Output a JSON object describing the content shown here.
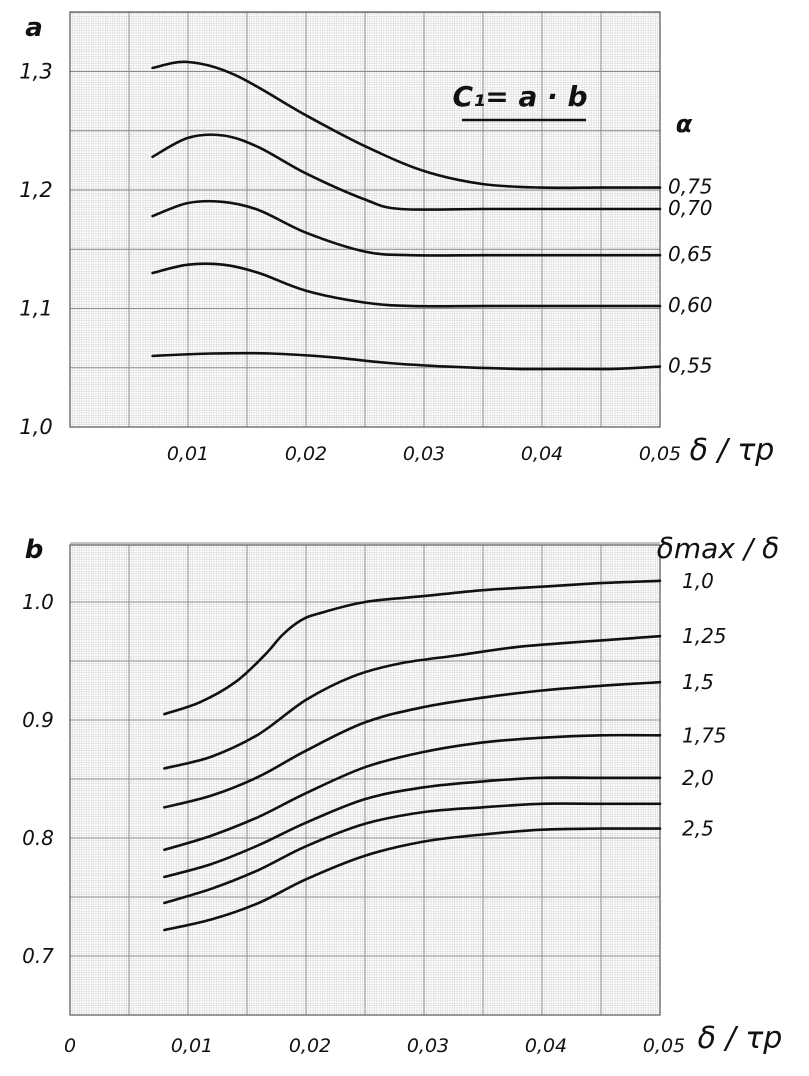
{
  "chart_data": [
    {
      "type": "line",
      "panel_label": "a",
      "formula": "C₁= a · b",
      "legend_title": "α",
      "xlabel": "δ / τp",
      "ylabel": "",
      "xlim": [
        0,
        0.05
      ],
      "ylim": [
        1.0,
        1.35
      ],
      "x_ticks": [
        "0,01",
        "0,02",
        "0,03",
        "0,04",
        "0,05"
      ],
      "y_ticks": [
        "1,0",
        "1,1",
        "1,2",
        "1,3"
      ],
      "grid": true,
      "legend_position": "right",
      "series": [
        {
          "name": "0,75",
          "x": [
            0.007,
            0.01,
            0.014,
            0.02,
            0.025,
            0.03,
            0.035,
            0.04,
            0.045,
            0.05
          ],
          "y": [
            1.303,
            1.308,
            1.297,
            1.263,
            1.237,
            1.216,
            1.205,
            1.202,
            1.202,
            1.202
          ]
        },
        {
          "name": "0,70",
          "x": [
            0.007,
            0.01,
            0.013,
            0.016,
            0.02,
            0.025,
            0.028,
            0.035,
            0.04,
            0.045,
            0.05
          ],
          "y": [
            1.228,
            1.244,
            1.246,
            1.236,
            1.214,
            1.192,
            1.184,
            1.184,
            1.184,
            1.184,
            1.184
          ]
        },
        {
          "name": "0,65",
          "x": [
            0.007,
            0.01,
            0.013,
            0.016,
            0.02,
            0.025,
            0.029,
            0.035,
            0.04,
            0.045,
            0.05
          ],
          "y": [
            1.178,
            1.189,
            1.19,
            1.183,
            1.164,
            1.148,
            1.145,
            1.145,
            1.145,
            1.145,
            1.145
          ]
        },
        {
          "name": "0,60",
          "x": [
            0.007,
            0.01,
            0.013,
            0.016,
            0.02,
            0.025,
            0.029,
            0.035,
            0.04,
            0.045,
            0.05
          ],
          "y": [
            1.13,
            1.137,
            1.137,
            1.13,
            1.115,
            1.105,
            1.102,
            1.102,
            1.102,
            1.102,
            1.102
          ]
        },
        {
          "name": "0,55",
          "x": [
            0.007,
            0.012,
            0.017,
            0.022,
            0.027,
            0.032,
            0.038,
            0.042,
            0.046,
            0.05
          ],
          "y": [
            1.06,
            1.062,
            1.062,
            1.059,
            1.054,
            1.051,
            1.049,
            1.049,
            1.049,
            1.051
          ]
        }
      ]
    },
    {
      "type": "line",
      "panel_label": "b",
      "legend_title": "δmax / δ",
      "xlabel": "δ / τp",
      "ylabel": "",
      "xlim": [
        0,
        0.05
      ],
      "ylim": [
        0.65,
        1.05
      ],
      "x_ticks": [
        "0",
        "0,01",
        "0,02",
        "0,03",
        "0,04",
        "0,05"
      ],
      "y_ticks": [
        "0.7",
        "0.8",
        "0.9",
        "1.0"
      ],
      "grid": true,
      "legend_position": "right",
      "series": [
        {
          "name": "1,0",
          "x": [
            0.008,
            0.011,
            0.014,
            0.0165,
            0.018,
            0.0195,
            0.021,
            0.025,
            0.03,
            0.035,
            0.04,
            0.045,
            0.05
          ],
          "y": [
            0.905,
            0.915,
            0.932,
            0.955,
            0.972,
            0.984,
            0.99,
            1.0,
            1.005,
            1.01,
            1.013,
            1.016,
            1.018
          ]
        },
        {
          "name": "1,25",
          "x": [
            0.008,
            0.012,
            0.016,
            0.02,
            0.024,
            0.028,
            0.033,
            0.038,
            0.043,
            0.05
          ],
          "y": [
            0.859,
            0.869,
            0.888,
            0.917,
            0.937,
            0.948,
            0.955,
            0.962,
            0.966,
            0.971
          ]
        },
        {
          "name": "1,5",
          "x": [
            0.008,
            0.012,
            0.016,
            0.02,
            0.025,
            0.03,
            0.035,
            0.04,
            0.045,
            0.05
          ],
          "y": [
            0.826,
            0.836,
            0.852,
            0.874,
            0.898,
            0.911,
            0.919,
            0.925,
            0.929,
            0.932
          ]
        },
        {
          "name": "1,75",
          "x": [
            0.008,
            0.012,
            0.016,
            0.02,
            0.025,
            0.03,
            0.035,
            0.04,
            0.045,
            0.05
          ],
          "y": [
            0.79,
            0.802,
            0.818,
            0.838,
            0.86,
            0.873,
            0.881,
            0.885,
            0.887,
            0.887
          ]
        },
        {
          "name": "2,0",
          "x": [
            0.008,
            0.012,
            0.016,
            0.02,
            0.025,
            0.03,
            0.035,
            0.04,
            0.045,
            0.05
          ],
          "y": [
            0.767,
            0.778,
            0.794,
            0.813,
            0.833,
            0.843,
            0.848,
            0.851,
            0.851,
            0.851
          ]
        },
        {
          "name": "",
          "x": [
            0.008,
            0.012,
            0.016,
            0.02,
            0.025,
            0.03,
            0.035,
            0.04,
            0.045,
            0.05
          ],
          "y": [
            0.745,
            0.757,
            0.773,
            0.793,
            0.812,
            0.822,
            0.826,
            0.829,
            0.829,
            0.829
          ]
        },
        {
          "name": "2,5",
          "x": [
            0.008,
            0.012,
            0.016,
            0.02,
            0.025,
            0.03,
            0.035,
            0.04,
            0.045,
            0.05
          ],
          "y": [
            0.722,
            0.731,
            0.745,
            0.765,
            0.785,
            0.797,
            0.803,
            0.807,
            0.808,
            0.808
          ]
        }
      ]
    }
  ]
}
